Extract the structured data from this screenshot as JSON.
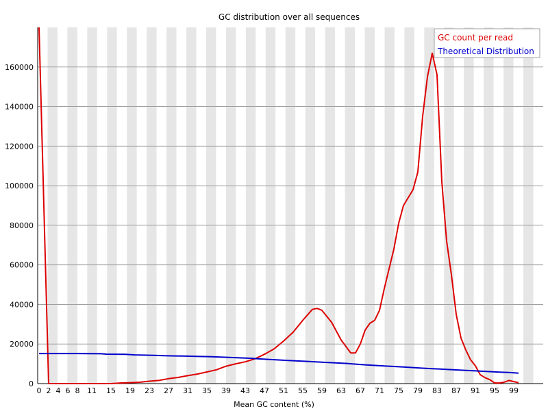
{
  "chart_data": {
    "type": "line",
    "title": "GC distribution over all sequences",
    "xlabel": "Mean GC content (%)",
    "ylabel": "",
    "xlim": [
      0,
      100
    ],
    "ylim": [
      0,
      180000
    ],
    "x_ticks": [
      "0",
      "2",
      "4",
      "6",
      "8",
      "11",
      "15",
      "19",
      "23",
      "27",
      "31",
      "35",
      "39",
      "43",
      "47",
      "51",
      "55",
      "59",
      "63",
      "67",
      "71",
      "75",
      "79",
      "83",
      "87",
      "91",
      "95",
      "99"
    ],
    "y_ticks": [
      0,
      20000,
      40000,
      60000,
      80000,
      100000,
      120000,
      140000,
      160000
    ],
    "grid": true,
    "legend": "top-right",
    "series": [
      {
        "name": "GC count per read",
        "color": "#dd0000",
        "points": [
          [
            0,
            180000
          ],
          [
            1,
            90000
          ],
          [
            2,
            0
          ],
          [
            3,
            0
          ],
          [
            5,
            0
          ],
          [
            10,
            0
          ],
          [
            15,
            0
          ],
          [
            17,
            300
          ],
          [
            19,
            500
          ],
          [
            21,
            700
          ],
          [
            23,
            1200
          ],
          [
            25,
            1600
          ],
          [
            27,
            2500
          ],
          [
            29,
            3100
          ],
          [
            31,
            4000
          ],
          [
            33,
            4800
          ],
          [
            35,
            5900
          ],
          [
            37,
            7000
          ],
          [
            39,
            8800
          ],
          [
            41,
            10000
          ],
          [
            43,
            11000
          ],
          [
            45,
            12500
          ],
          [
            47,
            14800
          ],
          [
            49,
            17500
          ],
          [
            51,
            21500
          ],
          [
            53,
            26000
          ],
          [
            55,
            32000
          ],
          [
            57,
            37500
          ],
          [
            58,
            38000
          ],
          [
            59,
            37000
          ],
          [
            61,
            31000
          ],
          [
            63,
            22000
          ],
          [
            65,
            15500
          ],
          [
            66,
            15500
          ],
          [
            67,
            20000
          ],
          [
            68,
            27000
          ],
          [
            69,
            30500
          ],
          [
            70,
            32000
          ],
          [
            71,
            37000
          ],
          [
            72,
            48000
          ],
          [
            74,
            68000
          ],
          [
            75,
            81000
          ],
          [
            76,
            90000
          ],
          [
            78,
            98000
          ],
          [
            79,
            107000
          ],
          [
            80,
            135000
          ],
          [
            81,
            155000
          ],
          [
            82,
            167000
          ],
          [
            83,
            156000
          ],
          [
            84,
            102000
          ],
          [
            85,
            72000
          ],
          [
            86,
            55000
          ],
          [
            87,
            35000
          ],
          [
            88,
            23000
          ],
          [
            89,
            17000
          ],
          [
            90,
            12000
          ],
          [
            91,
            9000
          ],
          [
            92,
            4500
          ],
          [
            93,
            3000
          ],
          [
            94,
            2000
          ],
          [
            95,
            300
          ],
          [
            96,
            300
          ],
          [
            97,
            700
          ],
          [
            98,
            1600
          ],
          [
            99,
            1000
          ],
          [
            100,
            500
          ]
        ]
      },
      {
        "name": "Theoretical Distribution",
        "color": "#0000cc",
        "points": [
          [
            0,
            15200
          ],
          [
            8,
            15200
          ],
          [
            13,
            15100
          ],
          [
            14,
            14900
          ],
          [
            18,
            14800
          ],
          [
            20,
            14500
          ],
          [
            24,
            14300
          ],
          [
            26,
            14100
          ],
          [
            30,
            13900
          ],
          [
            32,
            13800
          ],
          [
            36,
            13600
          ],
          [
            40,
            13200
          ],
          [
            44,
            12800
          ],
          [
            48,
            12200
          ],
          [
            52,
            11700
          ],
          [
            56,
            11200
          ],
          [
            60,
            10700
          ],
          [
            64,
            10200
          ],
          [
            68,
            9500
          ],
          [
            72,
            8900
          ],
          [
            76,
            8400
          ],
          [
            80,
            7800
          ],
          [
            84,
            7300
          ],
          [
            88,
            6800
          ],
          [
            92,
            6300
          ],
          [
            96,
            5800
          ],
          [
            98,
            5600
          ],
          [
            100,
            5300
          ]
        ]
      }
    ]
  }
}
